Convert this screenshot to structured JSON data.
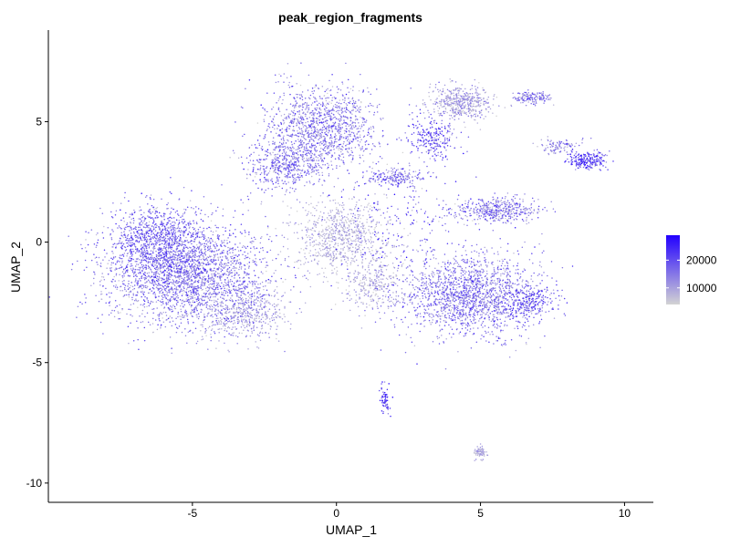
{
  "chart_data": {
    "type": "scatter",
    "title": "peak_region_fragments",
    "xlabel": "UMAP_1",
    "ylabel": "UMAP_2",
    "xlim": [
      -10,
      11
    ],
    "ylim": [
      -10.8,
      8.8
    ],
    "x_ticks": [
      -5,
      0,
      5,
      10
    ],
    "y_ticks": [
      -10,
      -5,
      0,
      5
    ],
    "grid": false,
    "legend": {
      "placement": "right",
      "type": "colorbar",
      "min": 4000,
      "max": 29000,
      "ticks": [
        10000,
        20000
      ],
      "low_color": "#d3d3d3",
      "high_color": "#2200ff"
    },
    "clusters": [
      {
        "cx": -5.2,
        "cy": -1.3,
        "sx": 1.9,
        "sy": 1.4,
        "n": 2600,
        "mean": 14500,
        "sd": 4500
      },
      {
        "cx": -6.3,
        "cy": 0.2,
        "sx": 1.0,
        "sy": 1.0,
        "n": 700,
        "mean": 17500,
        "sd": 4000
      },
      {
        "cx": -3.2,
        "cy": -2.9,
        "sx": 1.0,
        "sy": 0.7,
        "n": 500,
        "mean": 10000,
        "sd": 3000
      },
      {
        "cx": -0.5,
        "cy": 4.8,
        "sx": 1.3,
        "sy": 1.1,
        "n": 1200,
        "mean": 14000,
        "sd": 4500
      },
      {
        "cx": -1.8,
        "cy": 3.2,
        "sx": 0.9,
        "sy": 0.7,
        "n": 500,
        "mean": 15000,
        "sd": 4500
      },
      {
        "cx": 0.2,
        "cy": 0.2,
        "sx": 1.1,
        "sy": 1.0,
        "n": 800,
        "mean": 8000,
        "sd": 2500
      },
      {
        "cx": 1.3,
        "cy": -1.8,
        "sx": 0.7,
        "sy": 0.6,
        "n": 250,
        "mean": 8500,
        "sd": 3000
      },
      {
        "cx": 4.6,
        "cy": -2.2,
        "sx": 1.6,
        "sy": 1.1,
        "n": 1700,
        "mean": 14500,
        "sd": 4500
      },
      {
        "cx": 6.7,
        "cy": -2.5,
        "sx": 0.6,
        "sy": 0.5,
        "n": 250,
        "mean": 18000,
        "sd": 4500
      },
      {
        "cx": 4.3,
        "cy": 5.8,
        "sx": 0.7,
        "sy": 0.5,
        "n": 500,
        "mean": 9500,
        "sd": 3500
      },
      {
        "cx": 3.3,
        "cy": 4.4,
        "sx": 0.6,
        "sy": 0.6,
        "n": 250,
        "mean": 18000,
        "sd": 5000
      },
      {
        "cx": 6.8,
        "cy": 6.0,
        "sx": 0.4,
        "sy": 0.15,
        "n": 150,
        "mean": 13000,
        "sd": 4500
      },
      {
        "cx": 5.6,
        "cy": 1.3,
        "sx": 1.0,
        "sy": 0.35,
        "n": 450,
        "mean": 14000,
        "sd": 5000
      },
      {
        "cx": 8.7,
        "cy": 3.4,
        "sx": 0.5,
        "sy": 0.25,
        "n": 220,
        "mean": 20000,
        "sd": 5000
      },
      {
        "cx": 7.8,
        "cy": 4.0,
        "sx": 0.5,
        "sy": 0.2,
        "n": 100,
        "mean": 12000,
        "sd": 4000
      },
      {
        "cx": 1.7,
        "cy": -6.5,
        "sx": 0.12,
        "sy": 0.4,
        "n": 70,
        "mean": 20000,
        "sd": 5000
      },
      {
        "cx": 5.0,
        "cy": -8.7,
        "sx": 0.15,
        "sy": 0.2,
        "n": 70,
        "mean": 9000,
        "sd": 3000
      },
      {
        "cx": 2.0,
        "cy": 2.7,
        "sx": 0.7,
        "sy": 0.25,
        "n": 200,
        "mean": 15000,
        "sd": 5000
      },
      {
        "cx": 2.2,
        "cy": 0.5,
        "sx": 1.6,
        "sy": 1.6,
        "n": 220,
        "mean": 18000,
        "sd": 6000
      }
    ]
  }
}
